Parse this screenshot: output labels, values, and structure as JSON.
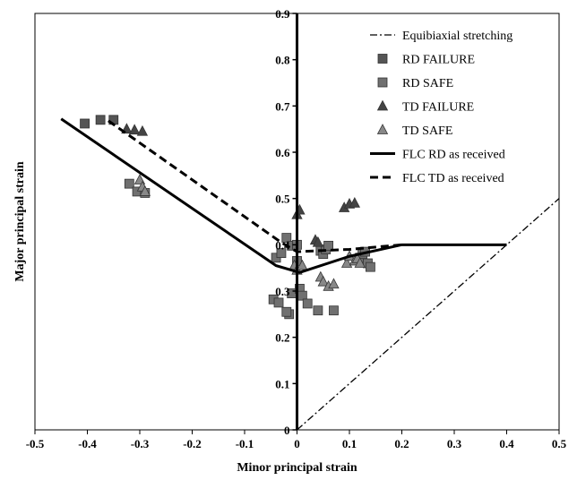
{
  "chart_data": {
    "type": "scatter",
    "xlabel": "Minor principal strain",
    "ylabel": "Major principal strain",
    "xlim": [
      -0.5,
      0.5
    ],
    "ylim": [
      0,
      0.9
    ],
    "x_ticks": [
      "-0.5",
      "-0.4",
      "-0.3",
      "-0.2",
      "-0.1",
      "0",
      "0.1",
      "0.2",
      "0.3",
      "0.4",
      "0.5"
    ],
    "y_ticks": [
      "0",
      "0.1",
      "0.2",
      "0.3",
      "0.4",
      "0.5",
      "0.6",
      "0.7",
      "0.8",
      "0.9"
    ],
    "grid": false,
    "legend_position": "top-right",
    "series": [
      {
        "name": "Equibiaxial stretching",
        "kind": "line",
        "style": "dash-dot",
        "color": "#000000",
        "x": [
          0,
          0.5
        ],
        "y": [
          0,
          0.5
        ]
      },
      {
        "name": "RD FAILURE",
        "kind": "marker",
        "marker": "square",
        "color": "#555555",
        "x": [
          -0.405,
          -0.375,
          -0.35
        ],
        "y": [
          0.662,
          0.67,
          0.67
        ]
      },
      {
        "name": "RD SAFE",
        "kind": "marker",
        "marker": "square",
        "color": "#707070",
        "x": [
          -0.32,
          -0.305,
          -0.29,
          -0.04,
          -0.03,
          -0.02,
          -0.01,
          -0.015,
          -0.01,
          0,
          0,
          0.005,
          0.01,
          0.02,
          0.04,
          0.045,
          0.05,
          0.055,
          0.06,
          0.07,
          0.12,
          0.125,
          0.13,
          0.135,
          0.14,
          -0.045,
          -0.035,
          -0.02
        ],
        "y": [
          0.532,
          0.515,
          0.512,
          0.372,
          0.382,
          0.415,
          0.398,
          0.25,
          0.295,
          0.365,
          0.4,
          0.305,
          0.29,
          0.273,
          0.258,
          0.387,
          0.38,
          0.39,
          0.398,
          0.258,
          0.372,
          0.38,
          0.385,
          0.36,
          0.352,
          0.282,
          0.275,
          0.255
        ]
      },
      {
        "name": "TD FAILURE",
        "kind": "marker",
        "marker": "triangle",
        "color": "#444444",
        "x": [
          -0.325,
          -0.31,
          -0.295,
          0,
          0.005,
          0.035,
          0.04,
          0.09,
          0.1,
          0.11
        ],
        "y": [
          0.65,
          0.648,
          0.645,
          0.465,
          0.475,
          0.41,
          0.405,
          0.48,
          0.488,
          0.49
        ]
      },
      {
        "name": "TD SAFE",
        "kind": "marker",
        "marker": "triangle",
        "color": "#888888",
        "x": [
          -0.3,
          -0.295,
          -0.29,
          -0.005,
          0,
          0.01,
          0.045,
          0.05,
          0.06,
          0.07,
          0.095,
          0.1,
          0.11,
          0.115,
          0.12
        ],
        "y": [
          0.54,
          0.525,
          0.515,
          0.355,
          0.345,
          0.355,
          0.33,
          0.32,
          0.31,
          0.315,
          0.36,
          0.375,
          0.365,
          0.37,
          0.36
        ]
      },
      {
        "name": "FLC RD as received",
        "kind": "line",
        "style": "solid",
        "color": "#000000",
        "x": [
          -0.45,
          -0.04,
          0.005,
          0.1,
          0.2,
          0.4
        ],
        "y": [
          0.672,
          0.355,
          0.34,
          0.375,
          0.4,
          0.4
        ]
      },
      {
        "name": "FLC TD as received",
        "kind": "line",
        "style": "dashed",
        "color": "#000000",
        "x": [
          -0.36,
          -0.03,
          0.0,
          0.1,
          0.2
        ],
        "y": [
          0.668,
          0.405,
          0.385,
          0.39,
          0.4
        ]
      }
    ]
  }
}
